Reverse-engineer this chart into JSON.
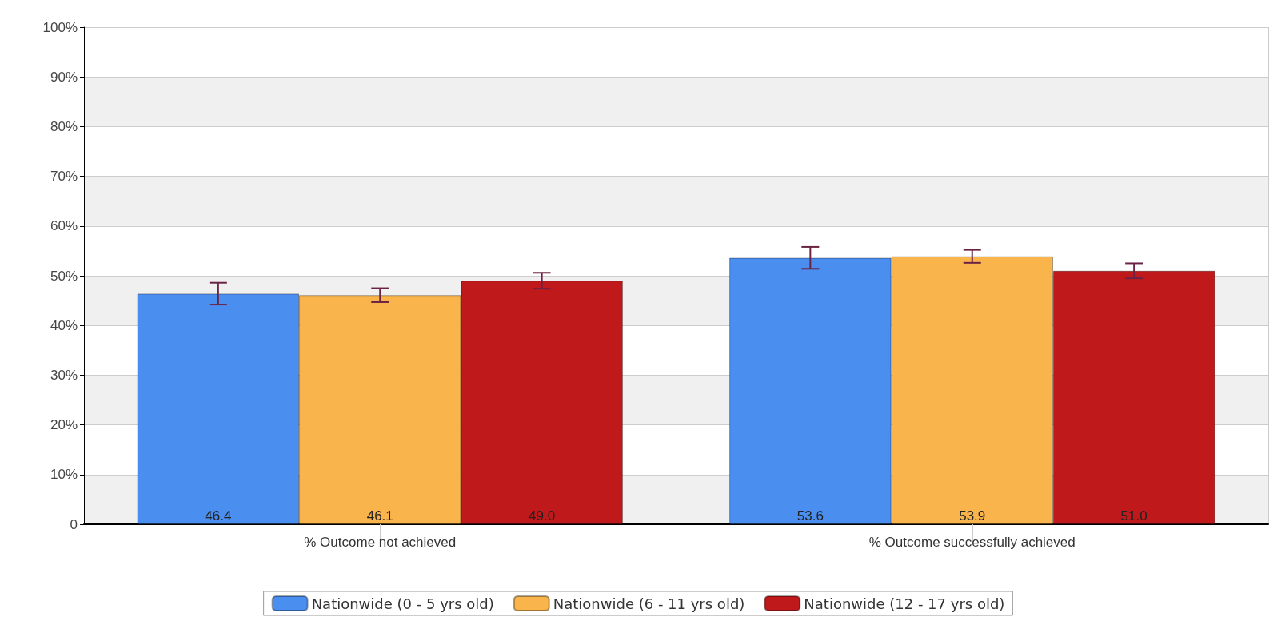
{
  "chart_data": {
    "type": "bar",
    "categories": [
      "% Outcome not achieved",
      "% Outcome successfully achieved"
    ],
    "series": [
      {
        "name": "Nationwide (0 - 5 yrs old)",
        "color": "#4a8ef0",
        "values": [
          46.4,
          53.6
        ],
        "value_labels": [
          "46.4",
          "53.6"
        ],
        "errors": [
          2.2,
          2.2
        ]
      },
      {
        "name": "Nationwide (6 - 11 yrs old)",
        "color": "#f9b44c",
        "values": [
          46.1,
          53.9
        ],
        "value_labels": [
          "46.1",
          "53.9"
        ],
        "errors": [
          1.4,
          1.3
        ]
      },
      {
        "name": "Nationwide (12 - 17 yrs old)",
        "color": "#c0191b",
        "values": [
          49.0,
          51.0
        ],
        "value_labels": [
          "49.0",
          "51.0"
        ],
        "errors": [
          1.6,
          1.5
        ]
      }
    ],
    "ylim": [
      0,
      100
    ],
    "yticks": [
      0,
      {
        "value": 10,
        "label": "10%"
      },
      {
        "value": 20,
        "label": "20%"
      },
      {
        "value": 30,
        "label": "30%"
      },
      {
        "value": 40,
        "label": "40%"
      },
      {
        "value": 50,
        "label": "50%"
      },
      {
        "value": 60,
        "label": "60%"
      },
      {
        "value": 70,
        "label": "70%"
      },
      {
        "value": 80,
        "label": "80%"
      },
      {
        "value": 90,
        "label": "90%"
      },
      {
        "value": 100,
        "label": "100%"
      }
    ],
    "grid": true,
    "legend": "bottom"
  }
}
